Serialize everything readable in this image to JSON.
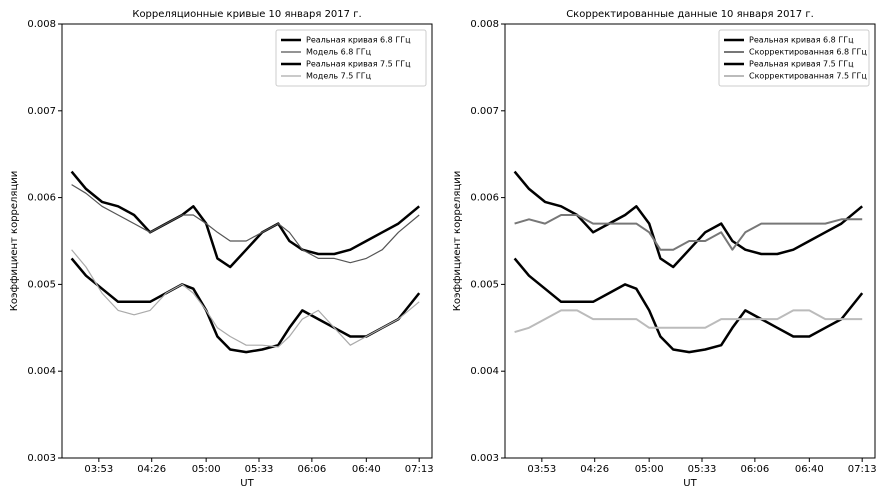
{
  "chart_data": [
    {
      "type": "line",
      "title": "Корреляционные кривые 10 января 2017 г.",
      "xlabel": "UT",
      "ylabel": "Коэффициент корреляции",
      "x": [
        216,
        225,
        235,
        245,
        255,
        265,
        275,
        285,
        292,
        300,
        307,
        315,
        325,
        335,
        345,
        352,
        360,
        370,
        380,
        390,
        400,
        410,
        420,
        433
      ],
      "xlim": [
        210,
        441
      ],
      "ylim": [
        0.003,
        0.008
      ],
      "xticks": [
        {
          "value": 233,
          "label": "03:53"
        },
        {
          "value": 266,
          "label": "04:26"
        },
        {
          "value": 300,
          "label": "05:00"
        },
        {
          "value": 333,
          "label": "05:33"
        },
        {
          "value": 366,
          "label": "06:06"
        },
        {
          "value": 400,
          "label": "06:40"
        },
        {
          "value": 433,
          "label": "07:13"
        }
      ],
      "yticks": [
        0.003,
        0.004,
        0.005,
        0.006,
        0.007,
        0.008
      ],
      "legend": "upper right",
      "series": [
        {
          "name": "Реальная кривая 6.8 ГГц",
          "color": "#000000",
          "linewidth": 2.5,
          "values": [
            0.0063,
            0.0061,
            0.00595,
            0.0059,
            0.0058,
            0.0056,
            0.0057,
            0.0058,
            0.0059,
            0.0057,
            0.0053,
            0.0052,
            0.0054,
            0.0056,
            0.0057,
            0.0055,
            0.0054,
            0.00535,
            0.00535,
            0.0054,
            0.0055,
            0.0056,
            0.0057,
            0.0059
          ]
        },
        {
          "name": "Модель 6.8 ГГц",
          "color": "#555555",
          "linewidth": 1.2,
          "values": [
            0.00615,
            0.00605,
            0.0059,
            0.0058,
            0.0057,
            0.0056,
            0.0057,
            0.0058,
            0.0058,
            0.0057,
            0.0056,
            0.0055,
            0.0055,
            0.0056,
            0.0057,
            0.0056,
            0.0054,
            0.0053,
            0.0053,
            0.00525,
            0.0053,
            0.0054,
            0.0056,
            0.0058
          ]
        },
        {
          "name": "Реальная кривая 7.5 ГГц",
          "color": "#000000",
          "linewidth": 2.5,
          "values": [
            0.0053,
            0.0051,
            0.00495,
            0.0048,
            0.0048,
            0.0048,
            0.0049,
            0.005,
            0.00495,
            0.0047,
            0.0044,
            0.00425,
            0.00422,
            0.00425,
            0.0043,
            0.0045,
            0.0047,
            0.0046,
            0.0045,
            0.0044,
            0.0044,
            0.0045,
            0.0046,
            0.0049
          ]
        },
        {
          "name": "Модель 7.5 ГГц",
          "color": "#aaaaaa",
          "linewidth": 1.2,
          "values": [
            0.0054,
            0.0052,
            0.0049,
            0.0047,
            0.00465,
            0.0047,
            0.0049,
            0.005,
            0.0049,
            0.0047,
            0.0045,
            0.0044,
            0.0043,
            0.0043,
            0.00428,
            0.0044,
            0.0046,
            0.0047,
            0.0045,
            0.0043,
            0.0044,
            0.0045,
            0.0046,
            0.0048
          ]
        }
      ]
    },
    {
      "type": "line",
      "title": "Скорректированные данные 10 января 2017 г.",
      "xlabel": "UT",
      "ylabel": "Коэффициент корреляции",
      "x": [
        216,
        225,
        235,
        245,
        255,
        265,
        275,
        285,
        292,
        300,
        307,
        315,
        325,
        335,
        345,
        352,
        360,
        370,
        380,
        390,
        400,
        410,
        420,
        433
      ],
      "xlim": [
        210,
        441
      ],
      "ylim": [
        0.003,
        0.008
      ],
      "xticks": [
        {
          "value": 233,
          "label": "03:53"
        },
        {
          "value": 266,
          "label": "04:26"
        },
        {
          "value": 300,
          "label": "05:00"
        },
        {
          "value": 333,
          "label": "05:33"
        },
        {
          "value": 366,
          "label": "06:06"
        },
        {
          "value": 400,
          "label": "06:40"
        },
        {
          "value": 433,
          "label": "07:13"
        }
      ],
      "yticks": [
        0.003,
        0.004,
        0.005,
        0.006,
        0.007,
        0.008
      ],
      "legend": "upper right",
      "series": [
        {
          "name": "Реальная кривая 6.8 ГГц",
          "color": "#000000",
          "linewidth": 2.5,
          "values": [
            0.0063,
            0.0061,
            0.00595,
            0.0059,
            0.0058,
            0.0056,
            0.0057,
            0.0058,
            0.0059,
            0.0057,
            0.0053,
            0.0052,
            0.0054,
            0.0056,
            0.0057,
            0.0055,
            0.0054,
            0.00535,
            0.00535,
            0.0054,
            0.0055,
            0.0056,
            0.0057,
            0.0059
          ]
        },
        {
          "name": "Скорректированная 6.8 ГГц",
          "color": "#777777",
          "linewidth": 2,
          "values": [
            0.0057,
            0.00575,
            0.0057,
            0.0058,
            0.0058,
            0.0057,
            0.0057,
            0.0057,
            0.0057,
            0.0056,
            0.0054,
            0.0054,
            0.0055,
            0.0055,
            0.0056,
            0.0054,
            0.0056,
            0.0057,
            0.0057,
            0.0057,
            0.0057,
            0.0057,
            0.00575,
            0.00575
          ]
        },
        {
          "name": "Реальная кривая 7.5 ГГц",
          "color": "#000000",
          "linewidth": 2.5,
          "values": [
            0.0053,
            0.0051,
            0.00495,
            0.0048,
            0.0048,
            0.0048,
            0.0049,
            0.005,
            0.00495,
            0.0047,
            0.0044,
            0.00425,
            0.00422,
            0.00425,
            0.0043,
            0.0045,
            0.0047,
            0.0046,
            0.0045,
            0.0044,
            0.0044,
            0.0045,
            0.0046,
            0.0049
          ]
        },
        {
          "name": "Скорректированная 7.5 ГГц",
          "color": "#bbbbbb",
          "linewidth": 2,
          "values": [
            0.00445,
            0.0045,
            0.0046,
            0.0047,
            0.0047,
            0.0046,
            0.0046,
            0.0046,
            0.0046,
            0.0045,
            0.0045,
            0.0045,
            0.0045,
            0.0045,
            0.0046,
            0.0046,
            0.0046,
            0.0046,
            0.0046,
            0.0047,
            0.0047,
            0.0046,
            0.0046,
            0.0046
          ]
        }
      ]
    }
  ]
}
